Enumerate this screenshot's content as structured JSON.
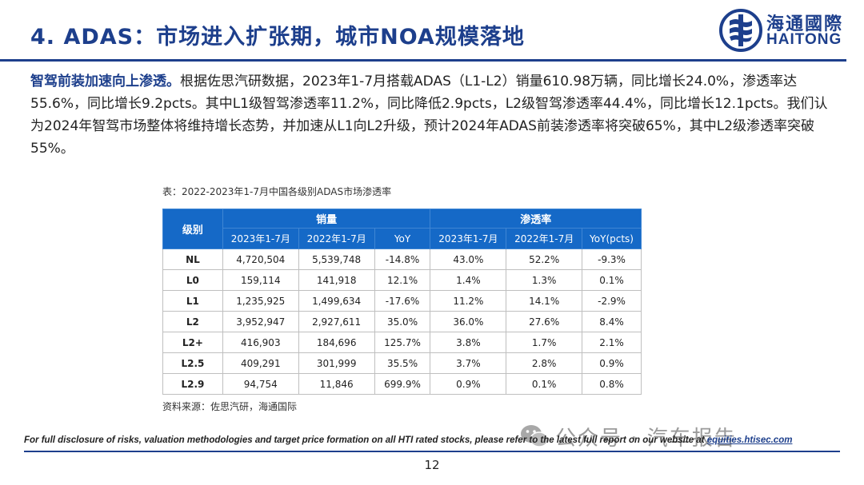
{
  "header": {
    "title": "4. ADAS：市场进入扩张期，城市NOA规模落地",
    "logo_cn": "海通國際",
    "logo_en": "HAITONG"
  },
  "body": {
    "lead": "智驾前装加速向上渗透。",
    "text": "根据佐思汽研数据，2023年1-7月搭载ADAS（L1-L2）销量610.98万辆，同比增长24.0%，渗透率达55.6%，同比增长9.2pcts。其中L1级智驾渗透率11.2%，同比降低2.9pcts，L2级智驾渗透率44.4%，同比增长12.1pcts。我们认为2024年智驾市场整体将维持增长态势，并加速从L1向L2升级，预计2024年ADAS前装渗透率将突破65%，其中L2级渗透率突破55%。"
  },
  "table": {
    "caption": "表：2022-2023年1-7月中国各级别ADAS市场渗透率",
    "group_headers": {
      "level": "级别",
      "sales": "销量",
      "penetration": "渗透率"
    },
    "sub_headers": [
      "2023年1-7月",
      "2022年1-7月",
      "YoY",
      "2023年1-7月",
      "2022年1-7月",
      "YoY(pcts)"
    ],
    "rows": [
      {
        "level": "NL",
        "cells": [
          "4,720,504",
          "5,539,748",
          "-14.8%",
          "43.0%",
          "52.2%",
          "-9.3%"
        ]
      },
      {
        "level": "L0",
        "cells": [
          "159,114",
          "141,918",
          "12.1%",
          "1.4%",
          "1.3%",
          "0.1%"
        ]
      },
      {
        "level": "L1",
        "cells": [
          "1,235,925",
          "1,499,634",
          "-17.6%",
          "11.2%",
          "14.1%",
          "-2.9%"
        ]
      },
      {
        "level": "L2",
        "cells": [
          "3,952,947",
          "2,927,611",
          "35.0%",
          "36.0%",
          "27.6%",
          "8.4%"
        ]
      },
      {
        "level": "L2+",
        "cells": [
          "416,903",
          "184,696",
          "125.7%",
          "3.8%",
          "1.7%",
          "2.1%"
        ]
      },
      {
        "level": "L2.5",
        "cells": [
          "409,291",
          "301,999",
          "35.5%",
          "3.7%",
          "2.8%",
          "0.9%"
        ]
      },
      {
        "level": "L2.9",
        "cells": [
          "94,754",
          "11,846",
          "699.9%",
          "0.9%",
          "0.1%",
          "0.8%"
        ]
      }
    ],
    "source": "资料来源：佐思汽研，海通国际"
  },
  "watermark": {
    "text": "公众号 · 汽车报告",
    "icon": "wechat-icon"
  },
  "footer": {
    "disclosure": "For full disclosure of risks, valuation methodologies and target price formation on all HTI rated stocks, please refer to the latest full report on our website at ",
    "link": "equities.htisec.com",
    "page": "12"
  },
  "colors": {
    "brand": "#1d3f8c",
    "table_header": "#1569c7",
    "watermark": "#9a9a9a"
  }
}
